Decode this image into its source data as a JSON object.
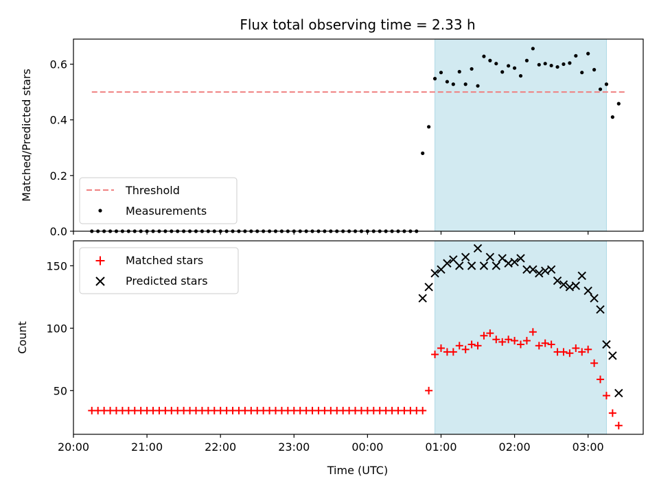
{
  "title": "Flux total observing time = 2.33 h",
  "colors": {
    "threshold": "#f08080",
    "measurements": "#000000",
    "matched": "#ff0000",
    "predicted": "#000000",
    "shade": "#add8e6"
  },
  "chart_data": [
    {
      "type": "scatter",
      "panel": "top",
      "ylabel": "Matched/Predicted stars",
      "xlabel": "",
      "xlim": [
        "20:00",
        "03:45"
      ],
      "ylim": [
        0,
        0.69
      ],
      "yticks": [
        0.0,
        0.2,
        0.4,
        0.6
      ],
      "ytick_labels": [
        "0.0",
        "0.2",
        "0.4",
        "0.6"
      ],
      "shaded_span": [
        "00:55",
        "03:15"
      ],
      "legend_position": "lower-left",
      "series": [
        {
          "name": "Threshold",
          "style": "dashed-line",
          "x": [
            "20:15",
            "03:30"
          ],
          "y": [
            0.5,
            0.5
          ]
        },
        {
          "name": "Measurements",
          "style": "dot",
          "x": [
            "20:15",
            "20:20",
            "20:25",
            "20:30",
            "20:35",
            "20:40",
            "20:45",
            "20:50",
            "20:55",
            "21:00",
            "21:05",
            "21:10",
            "21:15",
            "21:20",
            "21:25",
            "21:30",
            "21:35",
            "21:40",
            "21:45",
            "21:50",
            "21:55",
            "22:00",
            "22:05",
            "22:10",
            "22:15",
            "22:20",
            "22:25",
            "22:30",
            "22:35",
            "22:40",
            "22:45",
            "22:50",
            "22:55",
            "23:00",
            "23:05",
            "23:10",
            "23:15",
            "23:20",
            "23:25",
            "23:30",
            "23:35",
            "23:40",
            "23:45",
            "23:50",
            "23:55",
            "00:00",
            "00:05",
            "00:10",
            "00:15",
            "00:20",
            "00:25",
            "00:30",
            "00:35",
            "00:40",
            "00:45",
            "00:50",
            "00:55",
            "01:00",
            "01:05",
            "01:10",
            "01:15",
            "01:20",
            "01:25",
            "01:30",
            "01:35",
            "01:40",
            "01:45",
            "01:50",
            "01:55",
            "02:00",
            "02:05",
            "02:10",
            "02:15",
            "02:20",
            "02:25",
            "02:30",
            "02:35",
            "02:40",
            "02:45",
            "02:50",
            "02:55",
            "03:00",
            "03:05",
            "03:10",
            "03:15",
            "03:20",
            "03:25"
          ],
          "y": [
            0,
            0,
            0,
            0,
            0,
            0,
            0,
            0,
            0,
            0,
            0,
            0,
            0,
            0,
            0,
            0,
            0,
            0,
            0,
            0,
            0,
            0,
            0,
            0,
            0,
            0,
            0,
            0,
            0,
            0,
            0,
            0,
            0,
            0,
            0,
            0,
            0,
            0,
            0,
            0,
            0,
            0,
            0,
            0,
            0,
            0,
            0,
            0,
            0,
            0,
            0,
            0,
            0,
            0,
            0.28,
            0.375,
            0.548,
            0.57,
            0.537,
            0.528,
            0.573,
            0.528,
            0.583,
            0.522,
            0.628,
            0.613,
            0.602,
            0.572,
            0.594,
            0.586,
            0.558,
            0.613,
            0.656,
            0.598,
            0.602,
            0.595,
            0.59,
            0.6,
            0.604,
            0.63,
            0.57,
            0.638,
            0.58,
            0.51,
            0.528,
            0.41,
            0.458
          ]
        }
      ]
    },
    {
      "type": "scatter",
      "panel": "bottom",
      "ylabel": "Count",
      "xlabel": "Time (UTC)",
      "xlim": [
        "20:00",
        "03:45"
      ],
      "ylim": [
        15,
        170
      ],
      "yticks": [
        50,
        100,
        150
      ],
      "ytick_labels": [
        "50",
        "100",
        "150"
      ],
      "xticks": [
        "20:00",
        "21:00",
        "22:00",
        "23:00",
        "00:00",
        "01:00",
        "02:00",
        "03:00"
      ],
      "xtick_labels": [
        "20:00",
        "21:00",
        "22:00",
        "23:00",
        "00:00",
        "01:00",
        "02:00",
        "03:00"
      ],
      "shaded_span": [
        "00:55",
        "03:15"
      ],
      "legend_position": "upper-left",
      "series": [
        {
          "name": "Matched stars",
          "style": "plus",
          "x": [
            "20:15",
            "20:20",
            "20:25",
            "20:30",
            "20:35",
            "20:40",
            "20:45",
            "20:50",
            "20:55",
            "21:00",
            "21:05",
            "21:10",
            "21:15",
            "21:20",
            "21:25",
            "21:30",
            "21:35",
            "21:40",
            "21:45",
            "21:50",
            "21:55",
            "22:00",
            "22:05",
            "22:10",
            "22:15",
            "22:20",
            "22:25",
            "22:30",
            "22:35",
            "22:40",
            "22:45",
            "22:50",
            "22:55",
            "23:00",
            "23:05",
            "23:10",
            "23:15",
            "23:20",
            "23:25",
            "23:30",
            "23:35",
            "23:40",
            "23:45",
            "23:50",
            "23:55",
            "00:00",
            "00:05",
            "00:10",
            "00:15",
            "00:20",
            "00:25",
            "00:30",
            "00:35",
            "00:40",
            "00:45",
            "00:50",
            "00:55",
            "01:00",
            "01:05",
            "01:10",
            "01:15",
            "01:20",
            "01:25",
            "01:30",
            "01:35",
            "01:40",
            "01:45",
            "01:50",
            "01:55",
            "02:00",
            "02:05",
            "02:10",
            "02:15",
            "02:20",
            "02:25",
            "02:30",
            "02:35",
            "02:40",
            "02:45",
            "02:50",
            "02:55",
            "03:00",
            "03:05",
            "03:10",
            "03:15",
            "03:20",
            "03:25"
          ],
          "y": [
            34,
            34,
            34,
            34,
            34,
            34,
            34,
            34,
            34,
            34,
            34,
            34,
            34,
            34,
            34,
            34,
            34,
            34,
            34,
            34,
            34,
            34,
            34,
            34,
            34,
            34,
            34,
            34,
            34,
            34,
            34,
            34,
            34,
            34,
            34,
            34,
            34,
            34,
            34,
            34,
            34,
            34,
            34,
            34,
            34,
            34,
            34,
            34,
            34,
            34,
            34,
            34,
            34,
            34,
            34,
            50,
            79,
            84,
            81,
            81,
            86,
            83,
            87,
            86,
            94,
            96,
            91,
            89,
            91,
            90,
            87,
            90,
            97,
            86,
            88,
            87,
            81,
            81,
            80,
            84,
            81,
            83,
            72,
            59,
            46,
            32,
            22
          ]
        },
        {
          "name": "Predicted stars",
          "style": "x",
          "x": [
            "00:45",
            "00:50",
            "00:55",
            "01:00",
            "01:05",
            "01:10",
            "01:15",
            "01:20",
            "01:25",
            "01:30",
            "01:35",
            "01:40",
            "01:45",
            "01:50",
            "01:55",
            "02:00",
            "02:05",
            "02:10",
            "02:15",
            "02:20",
            "02:25",
            "02:30",
            "02:35",
            "02:40",
            "02:45",
            "02:50",
            "02:55",
            "03:00",
            "03:05",
            "03:10",
            "03:15",
            "03:20",
            "03:25"
          ],
          "y": [
            124,
            133,
            144,
            147,
            152,
            155,
            150,
            157,
            150,
            164,
            150,
            157,
            150,
            156,
            152,
            153,
            156,
            147,
            147,
            144,
            146,
            147,
            138,
            135,
            133,
            134,
            142,
            130,
            124,
            115,
            87,
            78,
            48
          ]
        }
      ]
    }
  ]
}
